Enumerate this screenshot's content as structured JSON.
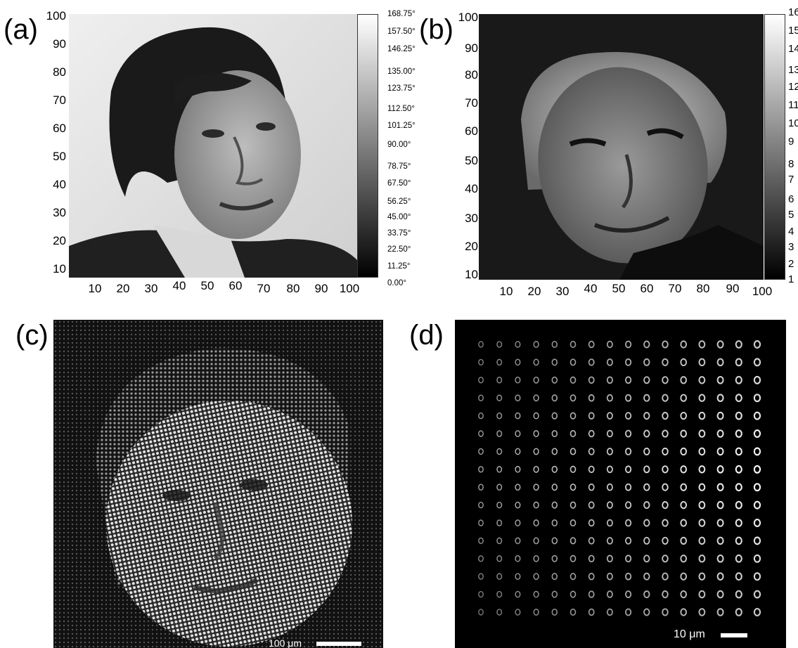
{
  "panels": {
    "a": {
      "label": "(a)",
      "y_ticks": [
        "100",
        "90",
        "80",
        "70",
        "60",
        "50",
        "40",
        "30",
        "20",
        "10"
      ],
      "x_ticks": [
        "10",
        "20",
        "30",
        "40",
        "50",
        "60",
        "70",
        "80",
        "90",
        "100"
      ],
      "colorbar_ticks": [
        "168.75°",
        "157.50°",
        "146.25°",
        "135.00°",
        "123.75°",
        "112.50°",
        "101.25°",
        "90.00°",
        "78.75°",
        "67.50°",
        "56.25°",
        "45.00°",
        "33.75°",
        "22.50°",
        "11.25°",
        "0.00°"
      ]
    },
    "b": {
      "label": "(b)",
      "y_ticks": [
        "100",
        "90",
        "80",
        "70",
        "60",
        "50",
        "40",
        "30",
        "20",
        "10"
      ],
      "x_ticks": [
        "10",
        "20",
        "30",
        "40",
        "50",
        "60",
        "70",
        "80",
        "90",
        "100"
      ],
      "colorbar_ticks": [
        "16",
        "15",
        "14",
        "13",
        "12",
        "11",
        "10",
        "9",
        "8",
        "7",
        "6",
        "5",
        "4",
        "3",
        "2",
        "1"
      ]
    },
    "c": {
      "label": "(c)",
      "scale_bar": "100 μm"
    },
    "d": {
      "label": "(d)",
      "scale_bar": "10 μm",
      "grid": {
        "rows": 16,
        "cols": 16
      }
    }
  }
}
